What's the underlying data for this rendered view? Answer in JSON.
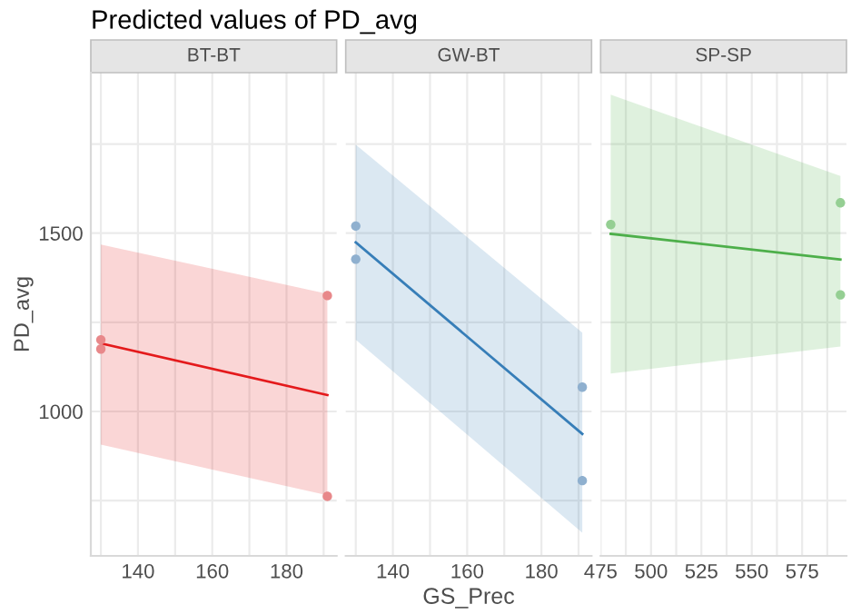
{
  "chart_data": [
    {
      "type": "line",
      "title": "Predicted values of PD_avg",
      "subtitle": "BT-BT",
      "ylabel": "PD_avg",
      "xlim": [
        127.3,
        193.5
      ],
      "ylim": [
        595,
        1950
      ],
      "xticks": [
        {
          "value": 130,
          "label": null
        },
        140,
        {
          "value": 150,
          "label": null
        },
        160,
        {
          "value": 170,
          "label": null
        },
        180,
        {
          "value": 190,
          "label": null
        }
      ],
      "yticks": [
        {
          "value": 750,
          "label": null
        },
        1000,
        {
          "value": 1250,
          "label": null
        },
        1500,
        {
          "value": 1750,
          "label": null
        }
      ],
      "grid": true,
      "series": [
        {
          "color": "#e41a1c",
          "x": [
            130,
            191
          ],
          "values": [
            1191,
            1046
          ],
          "lower": [
            907,
            765
          ],
          "upper": [
            1468,
            1330
          ]
        },
        {
          "type": "scatter",
          "color": "#e8888a",
          "marker": "circle",
          "x": [
            130,
            130,
            191,
            191
          ],
          "values": [
            1201,
            1175,
            1325,
            762
          ]
        }
      ]
    },
    {
      "type": "line",
      "subtitle": "GW-BT",
      "xlabel": "GS_Prec",
      "xlim": [
        127.3,
        193.5
      ],
      "ylim": [
        595,
        1950
      ],
      "tick_labels": "x",
      "xticks": [
        {
          "value": 130,
          "label": null
        },
        140,
        {
          "value": 150,
          "label": null
        },
        160,
        {
          "value": 170,
          "label": null
        },
        180,
        {
          "value": 190,
          "label": null
        }
      ],
      "yticks": [
        {
          "value": 750,
          "label": null
        },
        1000,
        {
          "value": 1250,
          "label": null
        },
        1500,
        {
          "value": 1750,
          "label": null
        }
      ],
      "grid": true,
      "series": [
        {
          "color": "#377eb8",
          "x": [
            130,
            191
          ],
          "values": [
            1474,
            937
          ],
          "lower": [
            1201,
            660
          ],
          "upper": [
            1748,
            1221
          ]
        },
        {
          "type": "scatter",
          "color": "#8fb0cf",
          "marker": "circle",
          "x": [
            130,
            130,
            191,
            191
          ],
          "values": [
            1520,
            1427,
            1068,
            806
          ]
        }
      ]
    },
    {
      "type": "line",
      "subtitle": "SP-SP",
      "xlim": [
        475,
        597
      ],
      "ylim": [
        595,
        1950
      ],
      "tick_labels": "x",
      "xticks": [
        475,
        {
          "value": 487.5,
          "label": null
        },
        500,
        {
          "value": 512.5,
          "label": null
        },
        525,
        {
          "value": 537.5,
          "label": null
        },
        550,
        {
          "value": 562.5,
          "label": null
        },
        575,
        {
          "value": 587.5,
          "label": null
        }
      ],
      "yticks": [
        {
          "value": 750,
          "label": null
        },
        1000,
        {
          "value": 1250,
          "label": null
        },
        1500,
        {
          "value": 1750,
          "label": null
        }
      ],
      "grid": true,
      "series": [
        {
          "color": "#4daf4a",
          "x": [
            480,
            594
          ],
          "values": [
            1498,
            1426
          ],
          "lower": [
            1106,
            1182
          ],
          "upper": [
            1888,
            1660
          ]
        },
        {
          "type": "scatter",
          "color": "#95cf93",
          "marker": "circle",
          "x": [
            480,
            594,
            594
          ],
          "values": [
            1524,
            1585,
            1327
          ]
        }
      ]
    }
  ]
}
